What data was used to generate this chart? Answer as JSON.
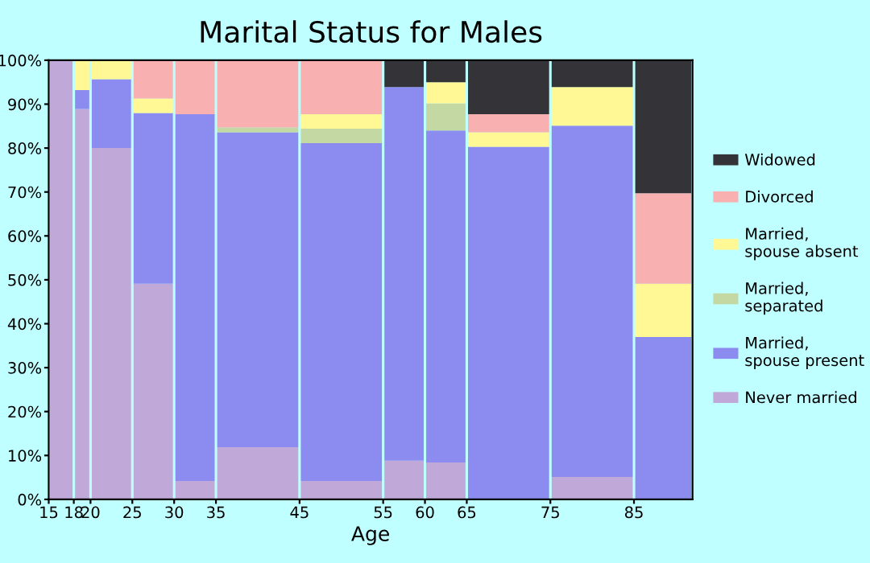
{
  "chart_data": {
    "type": "bar",
    "stacked": true,
    "title": "Marital Status for Males",
    "xlabel": "Age",
    "x": [
      16.5,
      19,
      22.5,
      27.5,
      32.5,
      40,
      50,
      57.5,
      62.5,
      70,
      80,
      88.5
    ],
    "xlim": [
      15,
      92
    ],
    "xticks": [
      15,
      18,
      20,
      25,
      30,
      35,
      45,
      55,
      60,
      65,
      75,
      85
    ],
    "ylim": [
      0,
      100
    ],
    "yticks": [
      {
        "value": 0,
        "label": "0%"
      },
      {
        "value": 10,
        "label": "10%"
      },
      {
        "value": 20,
        "label": "20%"
      },
      {
        "value": 30,
        "label": "30%"
      },
      {
        "value": 40,
        "label": "40%"
      },
      {
        "value": 50,
        "label": "50%"
      },
      {
        "value": 60,
        "label": "60%"
      },
      {
        "value": 70,
        "label": "70%"
      },
      {
        "value": 80,
        "label": "80%"
      },
      {
        "value": 90,
        "label": "90%"
      },
      {
        "value": 100,
        "label": "100%"
      }
    ],
    "grid": false,
    "legend": "right",
    "series": [
      {
        "name": "Never married",
        "color": "#c0a8d8",
        "values": [
          100,
          88.9,
          80,
          49.1,
          4.2,
          11.9,
          4.2,
          8.8,
          8.4,
          0,
          5.1,
          0
        ]
      },
      {
        "name": "Married,\nspouse present",
        "color": "#8c8cf0",
        "values": [
          0,
          4.3,
          15.7,
          38.9,
          83.5,
          71.7,
          76.9,
          85.1,
          75.6,
          80.3,
          80,
          37
        ]
      },
      {
        "name": "Married,\nseparated",
        "color": "#c4d8a4",
        "values": [
          0,
          0,
          0,
          0,
          0,
          1.1,
          3.3,
          0,
          6.2,
          0,
          0,
          0
        ]
      },
      {
        "name": "Married,\nspouse absent",
        "color": "#fff894",
        "values": [
          0,
          6.8,
          4.3,
          3.3,
          0,
          0,
          3.3,
          0,
          4.8,
          3.3,
          8.8,
          12.1
        ]
      },
      {
        "name": "Divorced",
        "color": "#f8b0b0",
        "values": [
          0,
          0,
          0,
          8.7,
          12.3,
          15.3,
          12.3,
          0,
          0,
          4.1,
          0,
          20.6
        ]
      },
      {
        "name": "Widowed",
        "color": "#343438",
        "values": [
          0,
          0,
          0,
          0,
          0,
          0,
          0,
          6.1,
          5.0,
          12.3,
          6.1,
          30.3
        ]
      }
    ]
  }
}
